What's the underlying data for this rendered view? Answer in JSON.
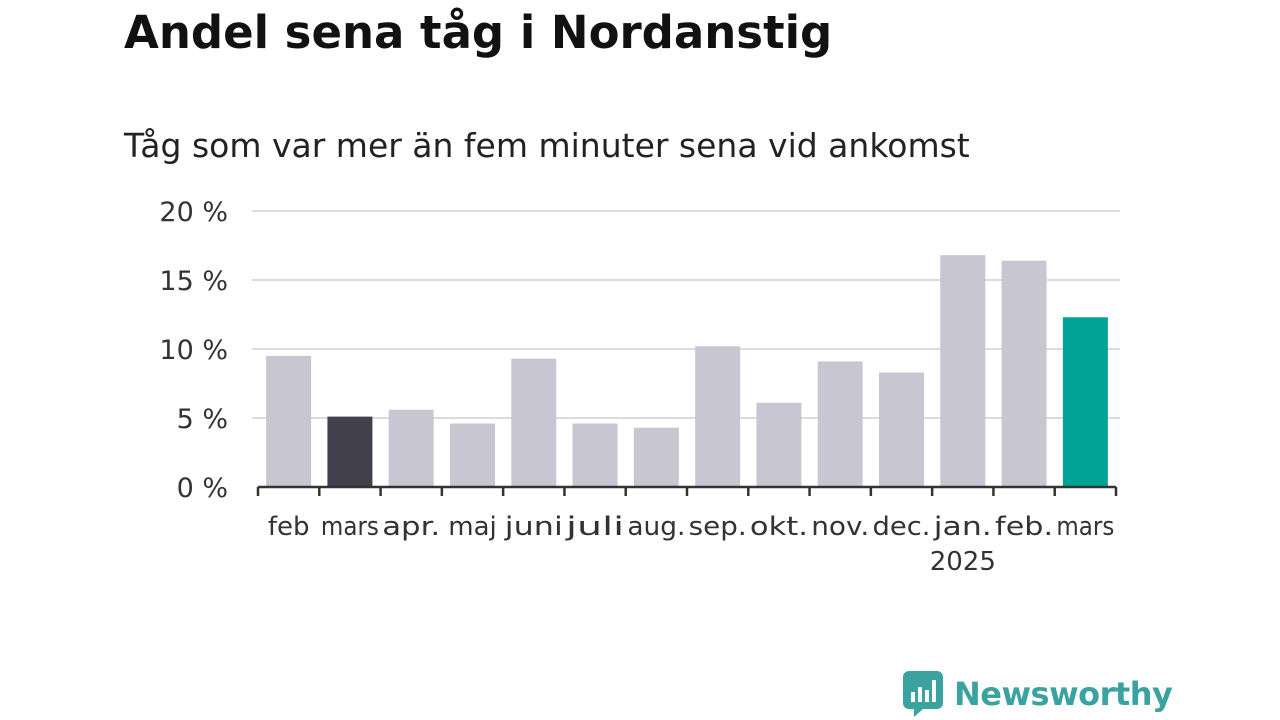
{
  "title": "Andel sena tåg i Nordanstig",
  "subtitle": "Tåg som var mer än fem minuter sena vid ankomst",
  "brand": {
    "name": "Newsworthy",
    "color": "#3aa3a0",
    "icon": "bar-chart-speech-bubble-icon"
  },
  "colors": {
    "bar": "#c8c6d2",
    "highlight_first": "#42404c",
    "highlight_last": "#00a497",
    "grid": "#dcdcdc",
    "axis": "#333333",
    "text": "#333333"
  },
  "chart_data": {
    "type": "bar",
    "categories": [
      "feb",
      "mars",
      "apr.",
      "maj",
      "juni",
      "juli",
      "aug.",
      "sep.",
      "okt.",
      "nov.",
      "dec.",
      "jan.",
      "feb.",
      "mars"
    ],
    "year_label": "2025",
    "year_label_under_index": 11,
    "values": [
      9.5,
      5.1,
      5.6,
      4.6,
      9.3,
      4.6,
      4.3,
      10.2,
      6.1,
      9.1,
      8.3,
      16.8,
      16.4,
      12.3
    ],
    "highlight": {
      "1": "highlight_first",
      "13": "highlight_last"
    },
    "y_ticks": [
      0,
      5,
      10,
      15,
      20
    ],
    "y_tick_labels": [
      "0 %",
      "5 %",
      "10 %",
      "15 %",
      "20 %"
    ],
    "ylim": [
      0,
      20
    ],
    "grid": true,
    "title": "Andel sena tåg i Nordanstig",
    "xlabel": "",
    "ylabel": ""
  }
}
